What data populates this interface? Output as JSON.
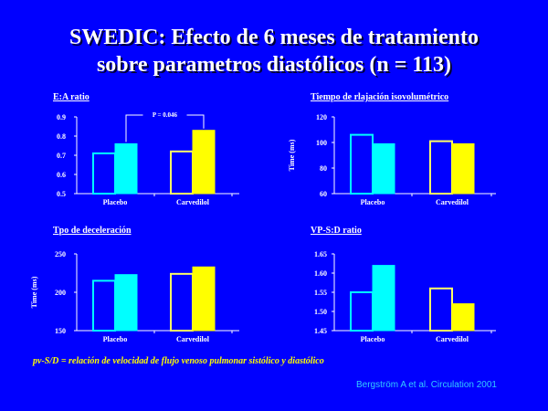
{
  "slide": {
    "title_line1": "SWEDIC: Efecto de 6 meses de tratamiento",
    "title_line2": "sobre parametros diastólicos (n = 113)",
    "footnote": "pv-S/D = relación de velocidad de  flujo venoso pulmonar sistólico y diastólico",
    "citation": "Bergström A et al. Circulation 2001"
  },
  "colors": {
    "background": "#0000ff",
    "pre_placebo": "#00ffff",
    "post_placebo": "#00ffff",
    "pre_carvedilol": "#ffff66",
    "post_carvedilol": "#ffff00",
    "axis": "#ffffff"
  },
  "chart_data": [
    {
      "type": "bar",
      "title": "E:A ratio",
      "ylabel": "",
      "categories": [
        "Placebo",
        "Carvedilol"
      ],
      "ylim": [
        0.5,
        0.9
      ],
      "yticks": [
        "0.5",
        "0.6",
        "0.7",
        "0.8",
        "0.9"
      ],
      "bars": [
        [
          0.71,
          0.76
        ],
        [
          0.72,
          0.83
        ]
      ],
      "annotation": "P = 0.046"
    },
    {
      "type": "bar",
      "title": "Tiempo de rlajación isovolumétrico",
      "ylabel": "Time (ms)",
      "categories": [
        "Placebo",
        "Carvedilol"
      ],
      "ylim": [
        60,
        120
      ],
      "yticks": [
        "60",
        "80",
        "100",
        "120"
      ],
      "bars": [
        [
          106,
          99
        ],
        [
          101,
          99
        ]
      ]
    },
    {
      "type": "bar",
      "title": "Tpo de deceleración",
      "ylabel": "Time (ms)",
      "categories": [
        "Placebo",
        "Carvedilol"
      ],
      "ylim": [
        150,
        250
      ],
      "yticks": [
        "150",
        "200",
        "250"
      ],
      "bars": [
        [
          215,
          223
        ],
        [
          224,
          233
        ]
      ]
    },
    {
      "type": "bar",
      "title": "VP-S:D ratio",
      "ylabel": "",
      "categories": [
        "Placebo",
        "Carvedilol"
      ],
      "ylim": [
        1.45,
        1.65
      ],
      "yticks": [
        "1.45",
        "1.50",
        "1.55",
        "1.60",
        "1.65"
      ],
      "bars": [
        [
          1.55,
          1.62
        ],
        [
          1.56,
          1.52
        ]
      ]
    }
  ]
}
